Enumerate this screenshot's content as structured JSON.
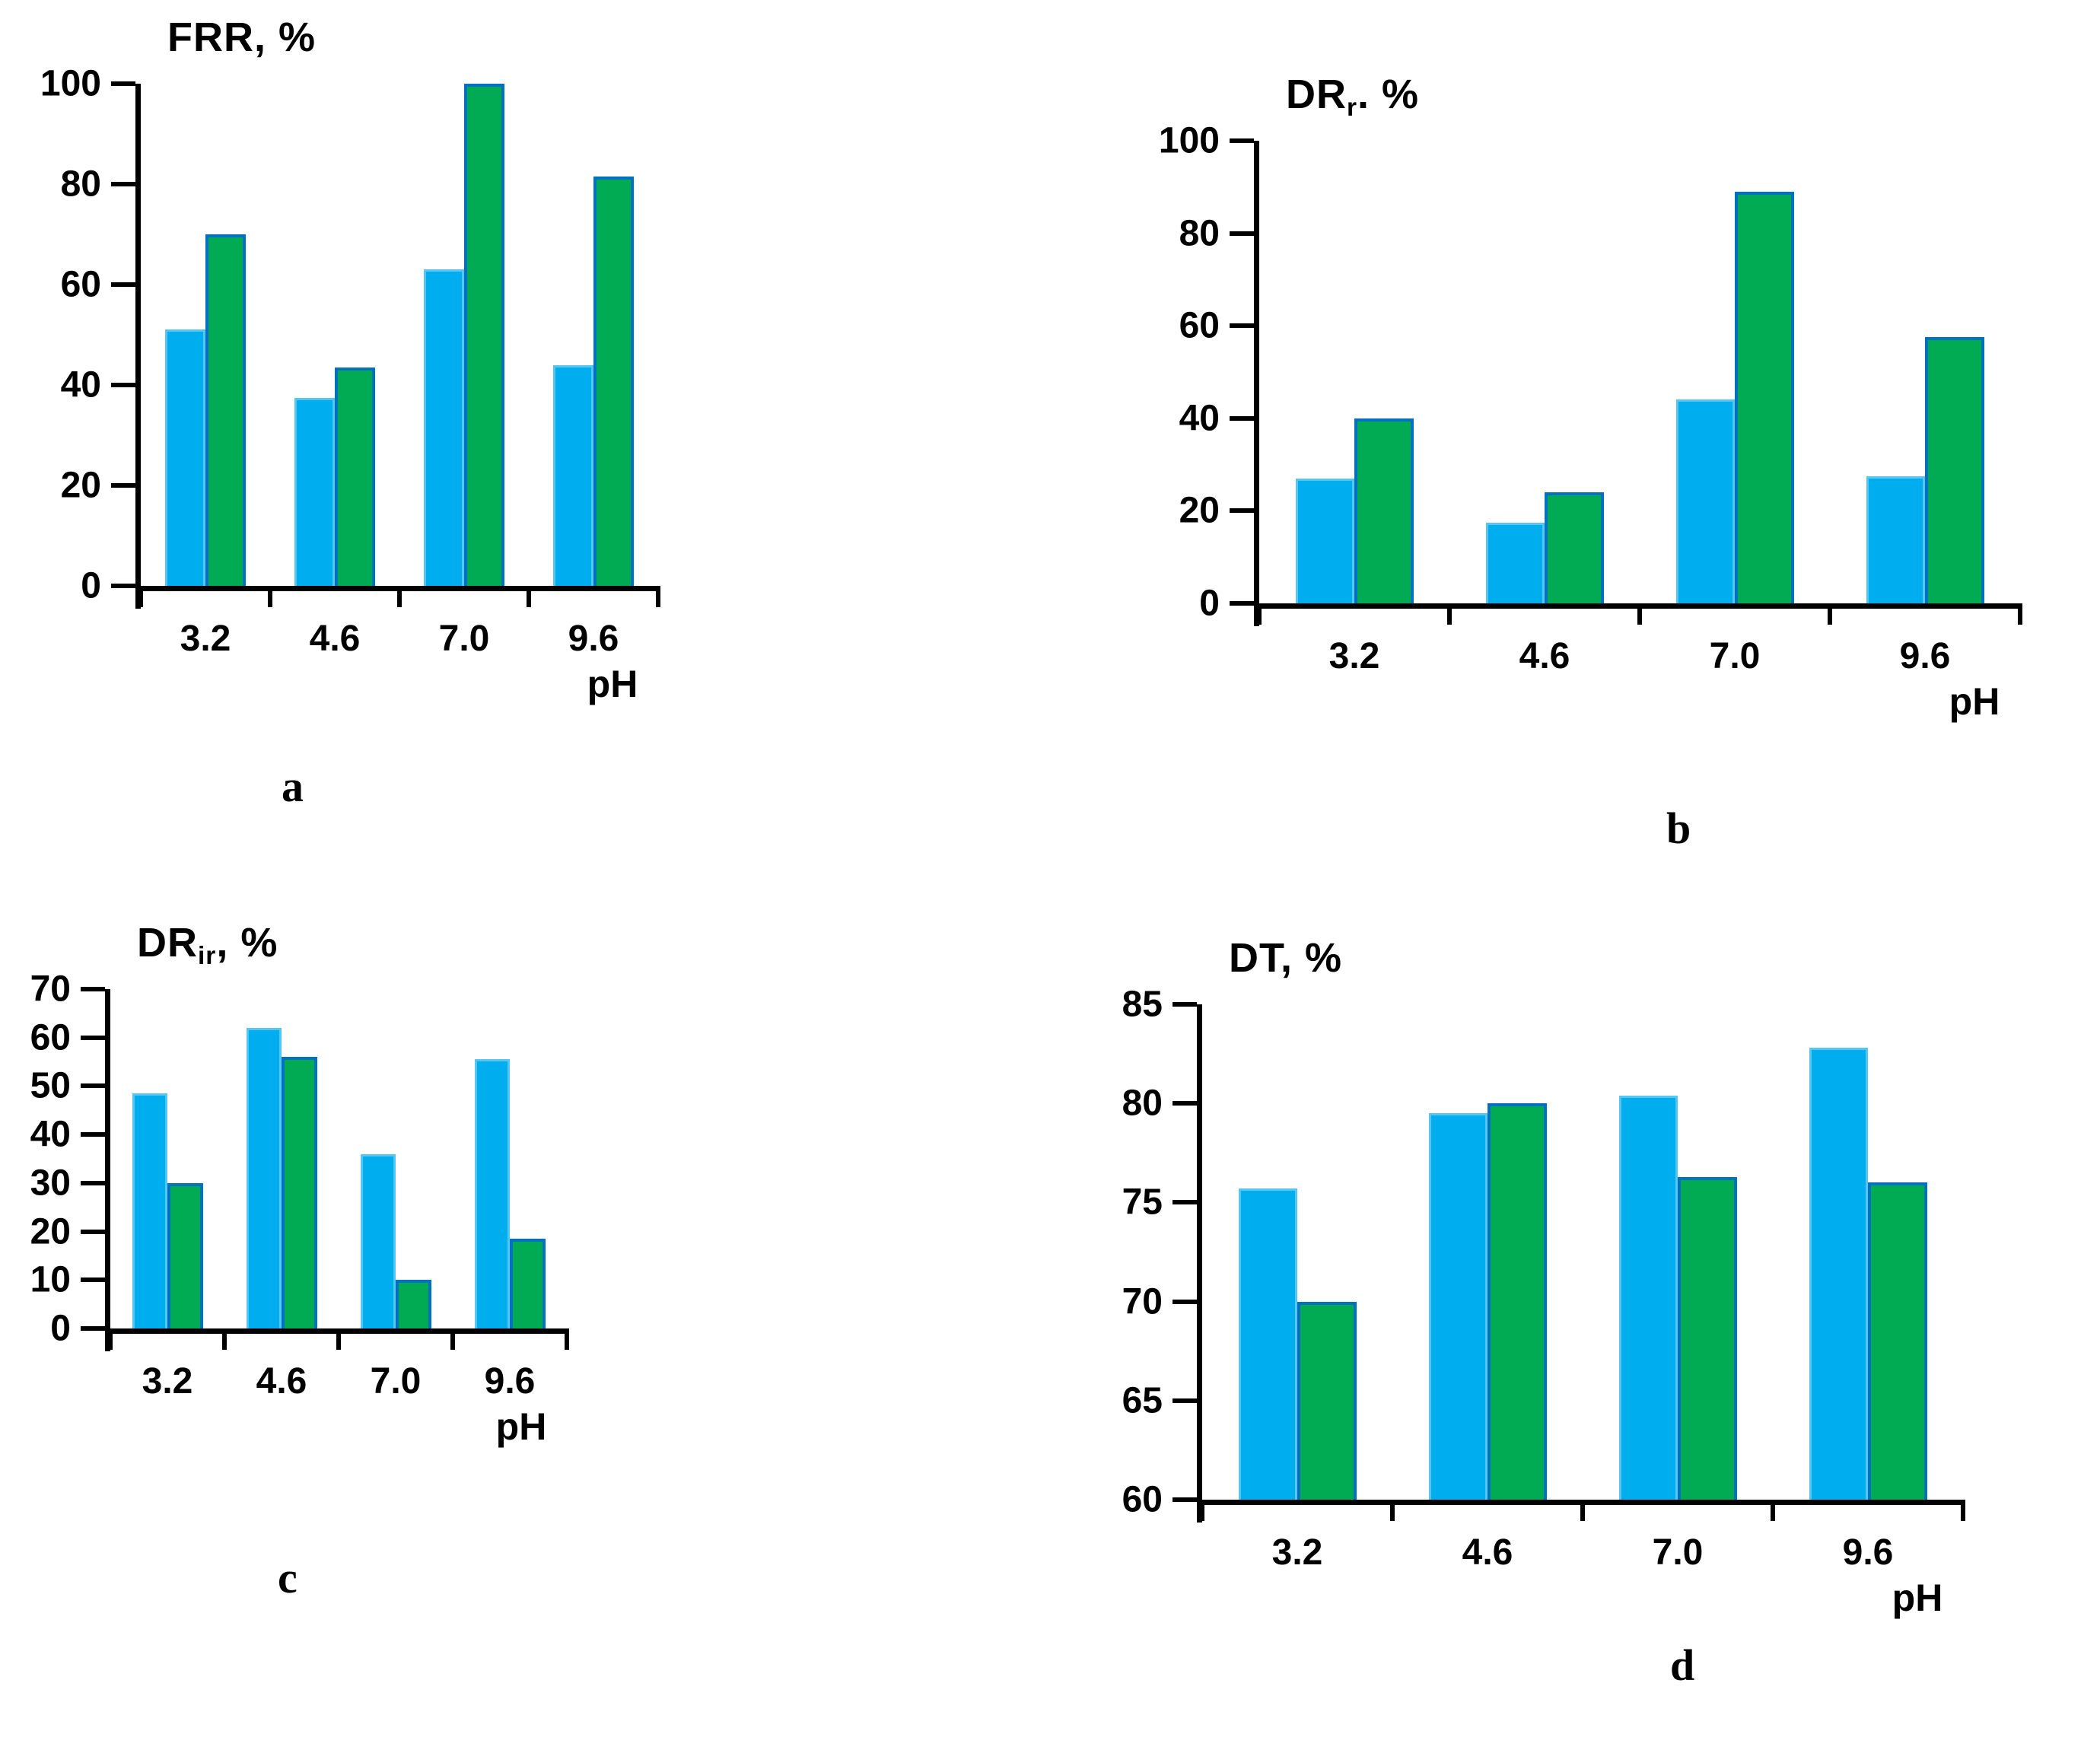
{
  "figure": {
    "background": "#ffffff",
    "axis_color": "#000000",
    "text_color": "#000000",
    "bar_fill_blue": "#00AEEF",
    "bar_border_blue": "#55C6F2",
    "bar_fill_green": "#00AB54",
    "bar_border_green": "#0071C1"
  },
  "chart_data": [
    {
      "type": "bar",
      "panel_letter": "a",
      "title_text": "FRR, %",
      "title_parts": [
        {
          "text": "FRR, %",
          "sub": false
        }
      ],
      "xlabel": "pH",
      "categories": [
        "3.2",
        "4.6",
        "7.0",
        "9.6"
      ],
      "series": [
        {
          "name": "blue",
          "color": "#00AEEF",
          "values": [
            51,
            37.5,
            63,
            44
          ]
        },
        {
          "name": "green",
          "color": "#00AB54",
          "values": [
            70,
            43.5,
            100,
            81.5
          ]
        }
      ],
      "ylim": [
        0,
        100
      ],
      "ystep": 20,
      "grid": false,
      "legend": "none"
    },
    {
      "type": "bar",
      "panel_letter": "b",
      "title_text": "DRr. %",
      "title_parts": [
        {
          "text": "DR",
          "sub": false
        },
        {
          "text": "r",
          "sub": true
        },
        {
          "text": ". %",
          "sub": false
        }
      ],
      "xlabel": "pH",
      "categories": [
        "3.2",
        "4.6",
        "7.0",
        "9.6"
      ],
      "series": [
        {
          "name": "blue",
          "color": "#00AEEF",
          "values": [
            27,
            17.5,
            44,
            27.5
          ]
        },
        {
          "name": "green",
          "color": "#00AB54",
          "values": [
            40,
            24,
            89,
            57.5
          ]
        }
      ],
      "ylim": [
        0,
        100
      ],
      "ystep": 20,
      "grid": false,
      "legend": "none"
    },
    {
      "type": "bar",
      "panel_letter": "c",
      "title_text": "DRir, %",
      "title_parts": [
        {
          "text": "DR",
          "sub": false
        },
        {
          "text": "ir",
          "sub": true
        },
        {
          "text": ", %",
          "sub": false
        }
      ],
      "xlabel": "pH",
      "categories": [
        "3.2",
        "4.6",
        "7.0",
        "9.6"
      ],
      "series": [
        {
          "name": "blue",
          "color": "#00AEEF",
          "values": [
            48.5,
            62,
            36,
            55.5
          ]
        },
        {
          "name": "green",
          "color": "#00AB54",
          "values": [
            30,
            56,
            10,
            18.5
          ]
        }
      ],
      "ylim": [
        0,
        70
      ],
      "ystep": 10,
      "grid": false,
      "legend": "none"
    },
    {
      "type": "bar",
      "panel_letter": "d",
      "title_text": "DT, %",
      "title_parts": [
        {
          "text": "DT, %",
          "sub": false
        }
      ],
      "xlabel": "pH",
      "categories": [
        "3.2",
        "4.6",
        "7.0",
        "9.6"
      ],
      "series": [
        {
          "name": "blue",
          "color": "#00AEEF",
          "values": [
            75.7,
            79.5,
            80.4,
            82.8
          ]
        },
        {
          "name": "green",
          "color": "#00AB54",
          "values": [
            70,
            80,
            76.3,
            76
          ]
        }
      ],
      "ylim": [
        60,
        85
      ],
      "ystep": 5,
      "grid": false,
      "legend": "none"
    }
  ]
}
